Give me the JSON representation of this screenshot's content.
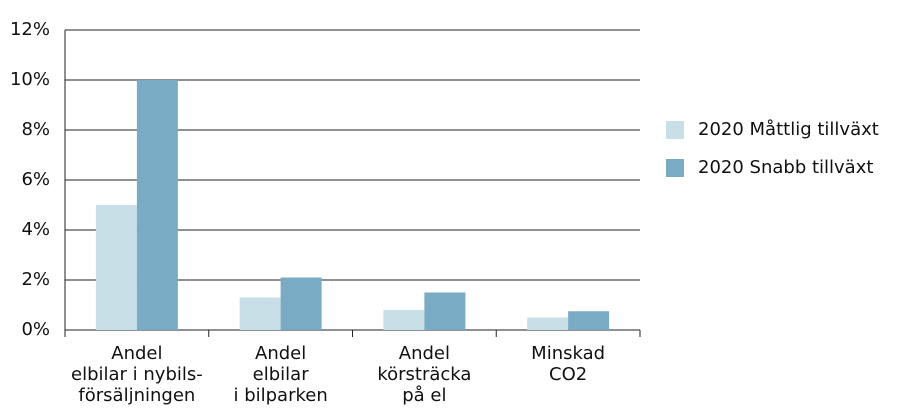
{
  "chart_data": {
    "type": "bar",
    "categories": [
      [
        "Andel",
        "elbilar i nybils-",
        "försäljningen"
      ],
      [
        "Andel",
        "elbilar",
        "i bilparken"
      ],
      [
        "Andel",
        "körsträcka",
        "på el"
      ],
      [
        "Minskad",
        "CO2"
      ]
    ],
    "series": [
      {
        "name": "2020 Måttlig tillväxt",
        "color": "#c9dfe8",
        "values": [
          5,
          1.3,
          0.8,
          0.5
        ]
      },
      {
        "name": "2020 Snabb tillväxt",
        "color": "#7aabc4",
        "values": [
          10,
          2.1,
          1.5,
          0.75
        ]
      }
    ],
    "ylim": [
      0,
      12
    ],
    "yticks": [
      {
        "value": 0,
        "label": "0%"
      },
      {
        "value": 2,
        "label": "2%"
      },
      {
        "value": 4,
        "label": "4%"
      },
      {
        "value": 6,
        "label": "6%"
      },
      {
        "value": 8,
        "label": "8%"
      },
      {
        "value": 10,
        "label": "10%"
      },
      {
        "value": 12,
        "label": "12%"
      }
    ],
    "grid": true,
    "legend": "right"
  }
}
